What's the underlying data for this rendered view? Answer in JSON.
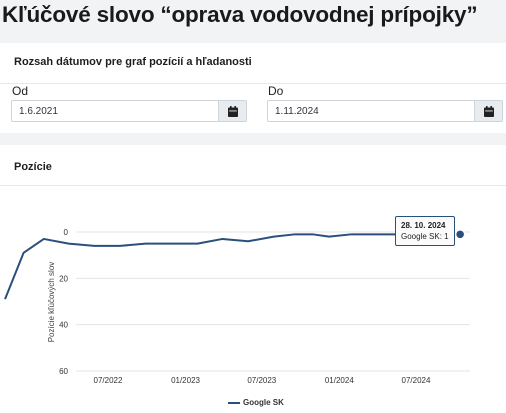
{
  "page": {
    "title": "Kľúčové slovo “oprava vodovodnej prípojky”"
  },
  "date_range": {
    "title": "Rozsah dátumov pre graf pozícií a hľadanosti",
    "from_label": "Od",
    "from_value": "1.6.2021",
    "to_label": "Do",
    "to_value": "1.11.2024"
  },
  "positions": {
    "title": "Pozície",
    "tooltip": {
      "date": "28. 10. 2024",
      "text": "Google SK: 1"
    }
  },
  "chart_data": {
    "type": "line",
    "ylabel": "Pozície kľúčových slov",
    "xlabel": "",
    "y_reversed": true,
    "ylim": [
      0,
      60
    ],
    "yticks": [
      0,
      20,
      40,
      60
    ],
    "xticks": [
      "07/2022",
      "01/2023",
      "07/2023",
      "01/2024",
      "07/2024"
    ],
    "legend": "bottom",
    "color": "#2b4f7c",
    "series": [
      {
        "name": "Google SK",
        "points": [
          [
            "2021-11-01",
            29
          ],
          [
            "2021-12-15",
            9
          ],
          [
            "2022-02-01",
            3
          ],
          [
            "2022-04-01",
            5
          ],
          [
            "2022-06-01",
            6
          ],
          [
            "2022-08-01",
            6
          ],
          [
            "2022-10-01",
            5
          ],
          [
            "2022-12-01",
            5
          ],
          [
            "2023-02-01",
            5
          ],
          [
            "2023-04-01",
            3
          ],
          [
            "2023-06-01",
            4
          ],
          [
            "2023-08-01",
            2
          ],
          [
            "2023-09-20",
            1
          ],
          [
            "2023-11-01",
            1
          ],
          [
            "2023-12-10",
            2
          ],
          [
            "2024-02-01",
            1
          ],
          [
            "2024-04-01",
            1
          ],
          [
            "2024-06-01",
            1
          ],
          [
            "2024-08-01",
            1
          ],
          [
            "2024-10-28",
            1
          ]
        ]
      }
    ]
  }
}
